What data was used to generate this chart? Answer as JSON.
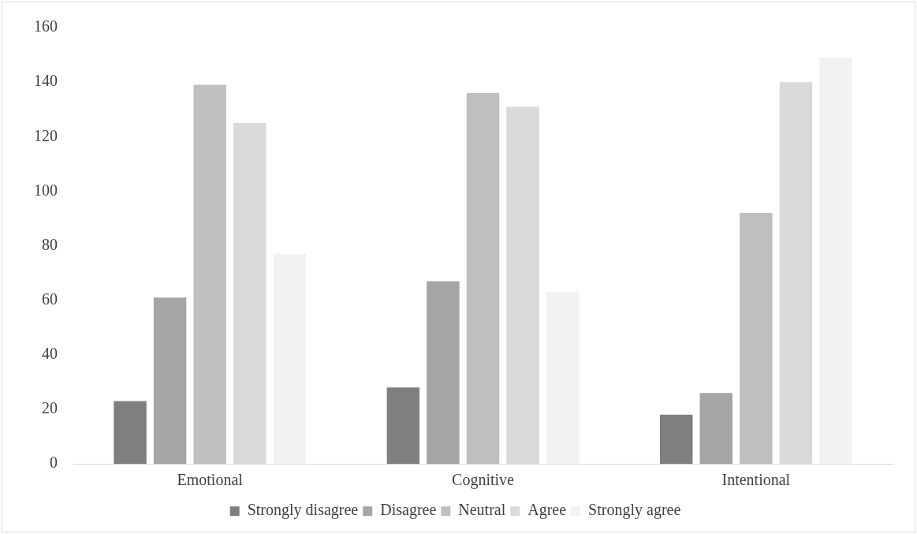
{
  "chart_data": {
    "type": "bar",
    "categories": [
      "Emotional",
      "Cognitive",
      "Intentional"
    ],
    "series": [
      {
        "name": "Strongly disagree",
        "color": "#7f7f7f",
        "values": [
          23,
          28,
          18
        ]
      },
      {
        "name": "Disagree",
        "color": "#a5a5a5",
        "values": [
          61,
          67,
          26
        ]
      },
      {
        "name": "Neutral",
        "color": "#bfbfbf",
        "values": [
          139,
          136,
          92
        ]
      },
      {
        "name": "Agree",
        "color": "#d9d9d9",
        "values": [
          125,
          131,
          140
        ]
      },
      {
        "name": "Strongly agree",
        "color": "#f2f2f2",
        "values": [
          77,
          63,
          149
        ]
      }
    ],
    "ylim": [
      0,
      160
    ],
    "yticks": [
      0,
      20,
      40,
      60,
      80,
      100,
      120,
      140,
      160
    ],
    "grid": false,
    "legend": "bottom"
  }
}
